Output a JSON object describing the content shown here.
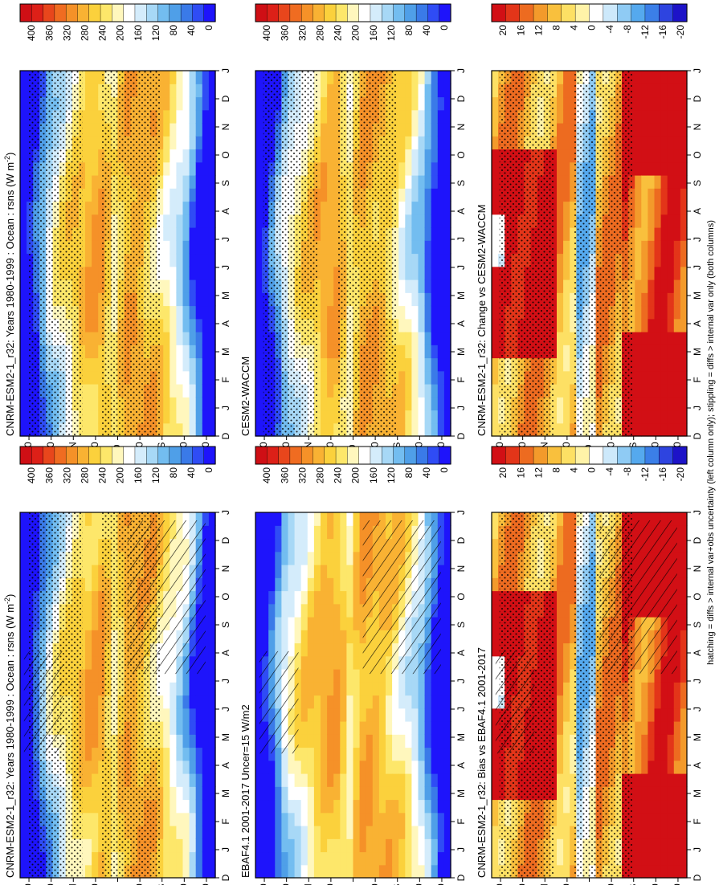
{
  "chart_data": [
    {
      "type": "heatmap",
      "title": "CNRM-ESM2-1_r32: Years 1980-1999 : Ocean : rsns (W m⁻²)",
      "title_text": "CNRM-ESM2-1_r32: Years 1980-1999 : Ocean : rsns (W m",
      "title_sup": "-2",
      "title_close": ")",
      "field": "absolute",
      "hatching": true,
      "stippling": true,
      "units": "W m-2"
    },
    {
      "type": "heatmap",
      "title": "CNRM-ESM2-1_r32: Years 1980-1999 : Ocean : rsns (W m⁻²)",
      "title_text": "CNRM-ESM2-1_r32: Years 1980-1999 : Ocean : rsns (W m",
      "title_sup": "-2",
      "title_close": ")",
      "field": "absolute",
      "hatching": false,
      "stippling": true,
      "units": "W m-2"
    },
    {
      "type": "heatmap",
      "title": "EBAF4.1 2001-2017 Uncer=15 W/m2",
      "title_text": "EBAF4.1 2001-2017 Uncer=15 W/m2",
      "field": "absolute",
      "hatching": true,
      "stippling": false,
      "units": "W m-2"
    },
    {
      "type": "heatmap",
      "title": "CESM2-WACCM",
      "title_text": "CESM2-WACCM",
      "field": "absolute",
      "hatching": false,
      "stippling": true,
      "units": "W m-2"
    },
    {
      "type": "heatmap",
      "title": "CNRM-ESM2-1_r32: Bias vs EBAF4.1 2001-2017",
      "title_text": "CNRM-ESM2-1_r32: Bias vs EBAF4.1 2001-2017",
      "field": "difference",
      "hatching": true,
      "stippling": true,
      "units": "W m-2"
    },
    {
      "type": "heatmap",
      "title": "CNRM-ESM2-1_r32: Change vs CESM2-WACCM",
      "title_text": "CNRM-ESM2-1_r32: Change vs CESM2-WACCM",
      "field": "difference",
      "hatching": false,
      "stippling": true,
      "units": "W m-2"
    }
  ],
  "axes": {
    "month_labels": [
      "D",
      "J",
      "F",
      "M",
      "A",
      "M",
      "J",
      "J",
      "A",
      "S",
      "O",
      "N",
      "D",
      "J"
    ],
    "lat_labels": [
      "80",
      "60",
      "°N",
      "20",
      "0",
      "20",
      "°S",
      "60",
      "80"
    ],
    "lat_values": [
      80,
      60,
      40,
      20,
      0,
      -20,
      -40,
      -60,
      -80
    ]
  },
  "colorbars": {
    "absolute": {
      "labels": [
        "400",
        "360",
        "320",
        "280",
        "240",
        "200",
        "160",
        "120",
        "80",
        "40",
        "0"
      ],
      "range": [
        0,
        420
      ]
    },
    "difference": {
      "labels": [
        "20",
        "16",
        "12",
        "8",
        "4",
        "0",
        "-4",
        "-8",
        "-12",
        "-16",
        "-20"
      ],
      "range": [
        -22,
        22
      ]
    }
  },
  "colors": {
    "warm_dark": "#d7191c",
    "warm": "#fdae61",
    "neutral": "#ffffff",
    "cool": "#5aa9f0",
    "cool_dark": "#0a1ef5"
  },
  "footnote": "hatching = diffs > internal var+obs uncertainty (left column only); stippling = diffs > internal var only (both columns)"
}
